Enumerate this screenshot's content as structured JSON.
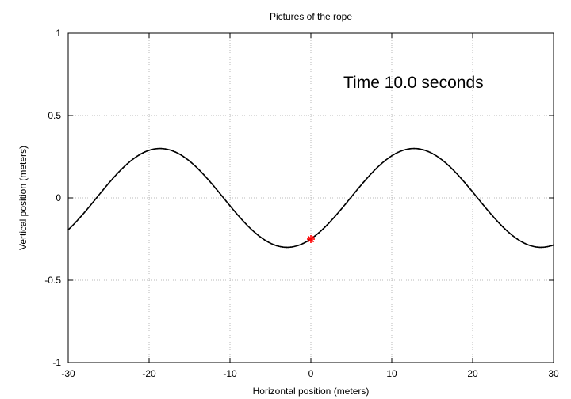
{
  "chart_data": {
    "type": "line",
    "title": "Pictures of the rope",
    "xlabel": "Horizontal position (meters)",
    "ylabel": "Vertical position (meters)",
    "xlim": [
      -30,
      30
    ],
    "ylim": [
      -1,
      1
    ],
    "xticks": [
      -30,
      -20,
      -10,
      0,
      10,
      20,
      30
    ],
    "xtick_labels": [
      "-30",
      "-20",
      "-10",
      "0",
      "10",
      "20",
      "30"
    ],
    "yticks": [
      -1,
      -0.5,
      0,
      0.5,
      1
    ],
    "ytick_labels": [
      "-1",
      "-0.5",
      "0",
      "0.5",
      "1"
    ],
    "grid": true,
    "annotation": "Time 10.0 seconds",
    "series": [
      {
        "line_color": "#000000",
        "wave": {
          "amplitude": 0.3,
          "wavelength": 31.4,
          "crest_x": -18.65,
          "trough_x": -2.95,
          "crest_x2": 12.75,
          "trough_x2": 28.45
        },
        "x": [
          -30,
          -28,
          -26,
          -24,
          -22,
          -20,
          -18.65,
          -16,
          -14,
          -12,
          -10,
          -8,
          -6,
          -4,
          -2.95,
          -2,
          0,
          2,
          4,
          6,
          8,
          10,
          12.75,
          14,
          16,
          18,
          20,
          22,
          24,
          26,
          28.45,
          30
        ],
        "y": [
          -0.196,
          -0.105,
          -0.005,
          0.096,
          0.185,
          0.255,
          0.3,
          0.26,
          0.18,
          0.08,
          -0.025,
          -0.13,
          -0.22,
          -0.28,
          -0.3,
          -0.292,
          -0.25,
          -0.17,
          -0.07,
          0.04,
          0.14,
          0.225,
          0.3,
          0.29,
          0.25,
          0.17,
          0.07,
          -0.04,
          -0.14,
          -0.225,
          -0.3,
          -0.29
        ]
      }
    ],
    "highlight_point": {
      "x": 0,
      "y": -0.25,
      "color": "#ff0000",
      "marker": "star"
    }
  }
}
